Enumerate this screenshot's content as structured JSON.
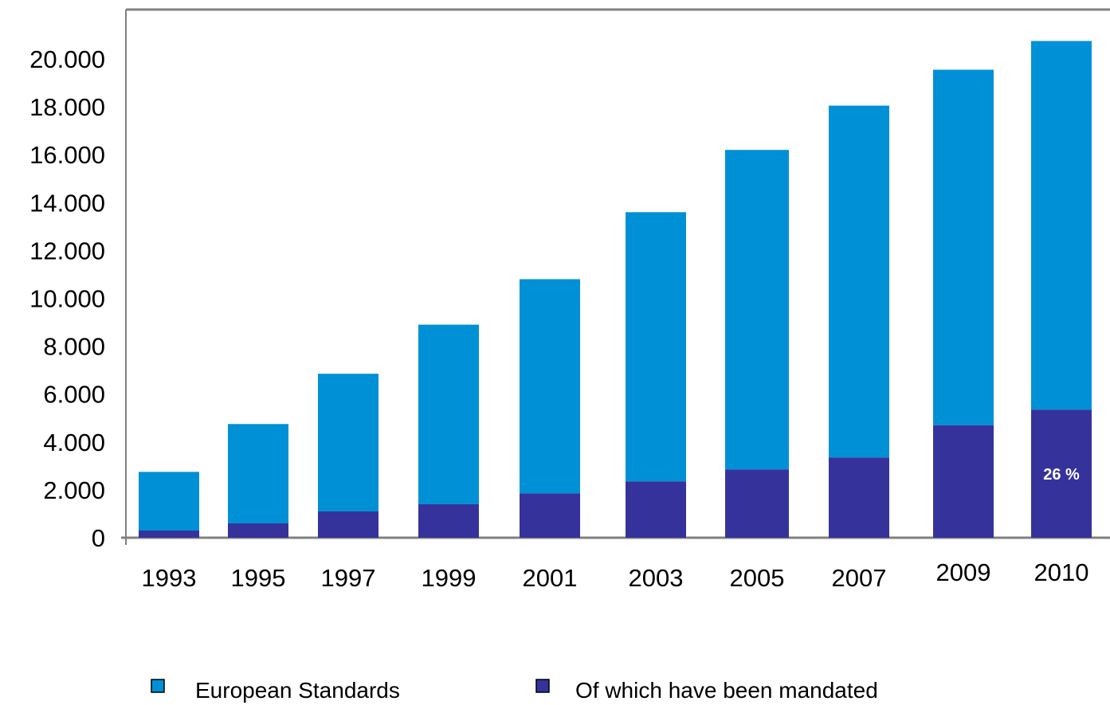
{
  "chart_data": {
    "type": "bar",
    "stacked": true,
    "categories": [
      "1993",
      "1995",
      "1997",
      "1999",
      "2001",
      "2003",
      "2005",
      "2007",
      "2009",
      "2010"
    ],
    "series": [
      {
        "name": "European Standards",
        "color": "#0090D6",
        "totals": [
          2750,
          4750,
          6850,
          8900,
          10800,
          13600,
          16200,
          18050,
          19550,
          20750
        ]
      },
      {
        "name": "Of which have been mandated",
        "color": "#35339B",
        "values": [
          300,
          600,
          1100,
          1400,
          1850,
          2350,
          2850,
          3350,
          4700,
          5350
        ]
      }
    ],
    "annotations": [
      {
        "category": "2010",
        "text": "26 %"
      }
    ],
    "title": "",
    "xlabel": "",
    "ylabel": "",
    "ylim": [
      0,
      20000
    ],
    "yticks": [
      0,
      2000,
      4000,
      6000,
      8000,
      10000,
      12000,
      14000,
      16000,
      18000,
      20000
    ],
    "ytick_labels": [
      "0",
      "2.000",
      "4.000",
      "6.000",
      "8.000",
      "10.000",
      "12.000",
      "14.000",
      "16.000",
      "18.000",
      "20.000"
    ],
    "grid": false,
    "legend_position": "bottom",
    "axis_color": "#808080"
  }
}
